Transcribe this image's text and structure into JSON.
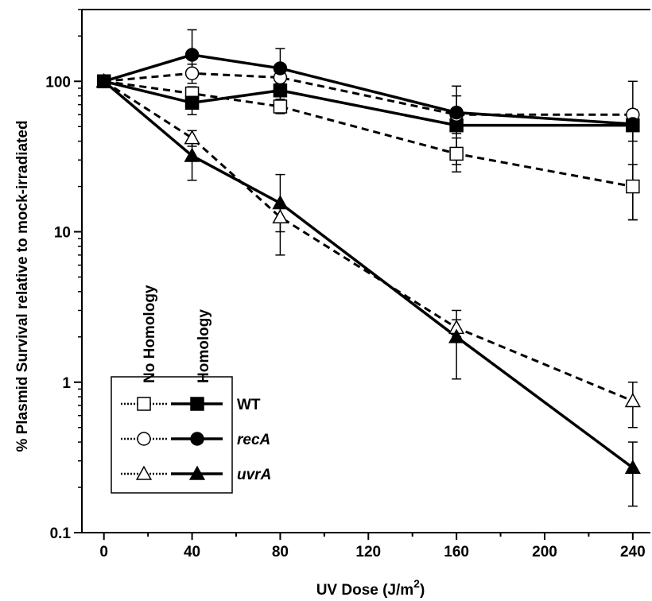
{
  "chart_data": {
    "type": "line",
    "xlabel": "UV Dose (J/m",
    "xlabel_sup": "2",
    "xlabel_close": ")",
    "ylabel": "% Plasmid Survival relative to mock-irradiated",
    "y_scale": "log",
    "xlim": [
      -10,
      248
    ],
    "ylim": [
      0.1,
      300
    ],
    "x_ticks": [
      0,
      40,
      80,
      120,
      160,
      200,
      240
    ],
    "x_tick_labels": [
      "0",
      "40",
      "80",
      "120",
      "160",
      "200",
      "240"
    ],
    "y_ticks": [
      0.1,
      1,
      10,
      100
    ],
    "y_tick_labels": [
      "0.1",
      "1",
      "10",
      "100"
    ],
    "legend_position": "bottom-left",
    "legend_column_headers": [
      "No Homology",
      "Homology"
    ],
    "legend_rows": [
      "WT",
      "recA",
      "uvrA"
    ],
    "series": [
      {
        "strain": "WT",
        "condition": "No Homology",
        "marker": "square",
        "filled": false,
        "dashed": true,
        "x": [
          0,
          40,
          80,
          160,
          240
        ],
        "y": [
          100,
          83,
          68,
          33,
          20
        ],
        "err_low": [
          null,
          72,
          61,
          25,
          12
        ],
        "err_high": [
          null,
          92,
          76,
          42,
          28
        ]
      },
      {
        "strain": "WT",
        "condition": "Homology",
        "marker": "square",
        "filled": true,
        "dashed": false,
        "x": [
          0,
          40,
          80,
          160,
          240
        ],
        "y": [
          100,
          72,
          87,
          51,
          51
        ],
        "err_low": [
          null,
          60,
          74,
          28,
          12
        ],
        "err_high": [
          null,
          85,
          98,
          93,
          100
        ]
      },
      {
        "strain": "recA",
        "condition": "No Homology",
        "marker": "circle",
        "filled": false,
        "dashed": true,
        "x": [
          0,
          40,
          80,
          160,
          240
        ],
        "y": [
          100,
          113,
          106,
          60,
          60
        ],
        "err_low": [
          null,
          97,
          91,
          57,
          56
        ],
        "err_high": [
          null,
          130,
          120,
          63,
          64
        ]
      },
      {
        "strain": "recA",
        "condition": "Homology",
        "marker": "circle",
        "filled": true,
        "dashed": false,
        "x": [
          0,
          40,
          80,
          160,
          240
        ],
        "y": [
          100,
          150,
          122,
          62,
          52
        ],
        "err_low": [
          null,
          105,
          90,
          45,
          40
        ],
        "err_high": [
          null,
          220,
          165,
          80,
          65
        ]
      },
      {
        "strain": "uvrA",
        "condition": "No Homology",
        "marker": "triangle",
        "filled": false,
        "dashed": true,
        "x": [
          0,
          40,
          80,
          160,
          240
        ],
        "y": [
          100,
          42,
          12.5,
          2.3,
          0.75
        ],
        "err_low": [
          null,
          37,
          10,
          2.0,
          0.5
        ],
        "err_high": [
          null,
          47,
          15,
          2.6,
          1.0
        ]
      },
      {
        "strain": "uvrA",
        "condition": "Homology",
        "marker": "triangle",
        "filled": true,
        "dashed": false,
        "x": [
          0,
          40,
          80,
          160,
          240
        ],
        "y": [
          100,
          32,
          15.5,
          2.0,
          0.27
        ],
        "err_low": [
          null,
          22,
          7,
          1.05,
          0.15
        ],
        "err_high": [
          null,
          40,
          24,
          3.0,
          0.4
        ]
      }
    ]
  }
}
